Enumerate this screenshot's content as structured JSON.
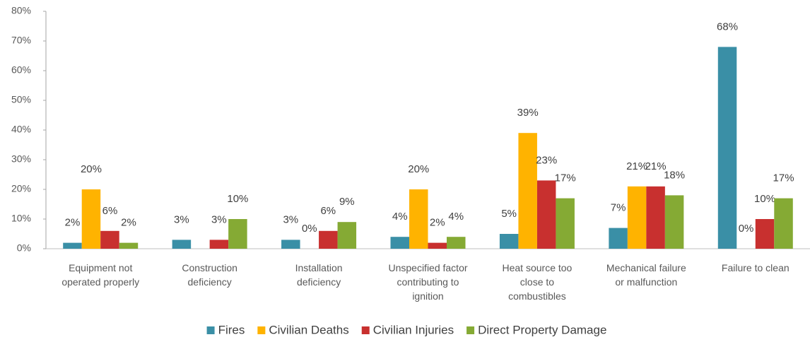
{
  "chart_data": {
    "type": "bar",
    "categories": [
      "Equipment not\noperated properly",
      "Construction\ndeficiency",
      "Installation\ndeficiency",
      "Unspecified factor\ncontributing to\nignition",
      "Heat source too\nclose to\ncombustibles",
      "Mechanical failure\nor malfunction",
      "Failure to clean"
    ],
    "series": [
      {
        "name": "Fires",
        "color": "#3a8fa6",
        "values": [
          2,
          3,
          3,
          4,
          5,
          7,
          68
        ],
        "value_labels": [
          "2%",
          "3%",
          "3%",
          "4%",
          "5%",
          "7%",
          "68%"
        ]
      },
      {
        "name": "Civilian Deaths",
        "color": "#ffb300",
        "values": [
          20,
          null,
          0,
          20,
          39,
          21,
          0
        ],
        "value_labels": [
          "20%",
          null,
          "0%",
          "20%",
          "39%",
          "21%",
          "0%"
        ]
      },
      {
        "name": "Civilian Injuries",
        "color": "#c8302f",
        "values": [
          6,
          3,
          6,
          2,
          23,
          21,
          10
        ],
        "value_labels": [
          "6%",
          "3%",
          "6%",
          "2%",
          "23%",
          "21%",
          "10%"
        ]
      },
      {
        "name": "Direct Property Damage",
        "color": "#85aa34",
        "values": [
          2,
          10,
          9,
          4,
          17,
          18,
          17
        ],
        "value_labels": [
          "2%",
          "10%",
          "9%",
          "4%",
          "17%",
          "18%",
          "17%"
        ]
      }
    ],
    "ylim": [
      0,
      80
    ],
    "yticks": [
      {
        "value": 0,
        "label": "0%"
      },
      {
        "value": 10,
        "label": "10%"
      },
      {
        "value": 20,
        "label": "20%"
      },
      {
        "value": 30,
        "label": "30%"
      },
      {
        "value": 40,
        "label": "40%"
      },
      {
        "value": 50,
        "label": "50%"
      },
      {
        "value": 60,
        "label": "60%"
      },
      {
        "value": 70,
        "label": "70%"
      },
      {
        "value": 80,
        "label": "80%"
      }
    ],
    "legend": "bottom"
  }
}
